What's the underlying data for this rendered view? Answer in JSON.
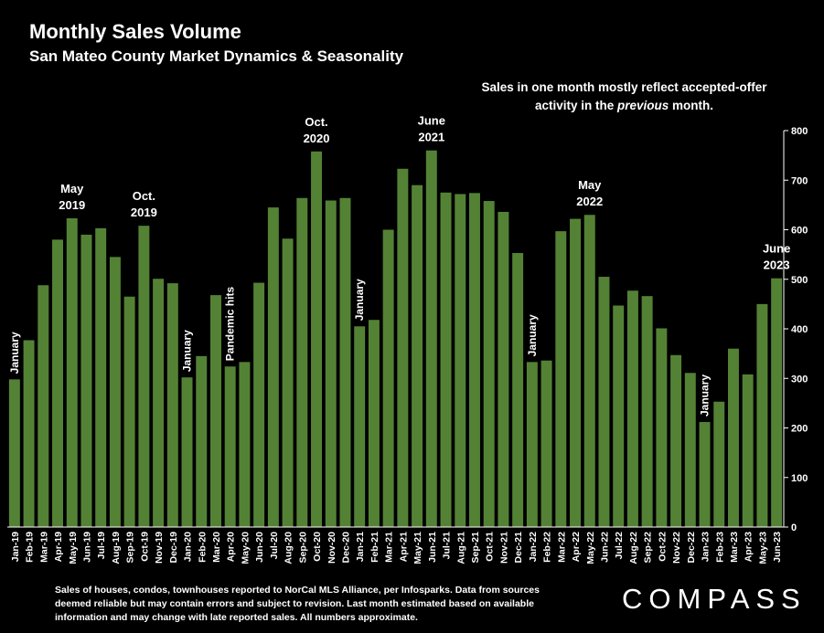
{
  "title": "Monthly Sales Volume",
  "subtitle": "San Mateo County Market Dynamics & Seasonality",
  "note_parts": [
    "Sales in one month mostly reflect accepted-offer activity in the ",
    "previous",
    " month."
  ],
  "footer": "Sales of houses, condos, townhouses reported to NorCal MLS Alliance, per Infosparks. Data from sources deemed reliable but may contain errors and subject to revision. Last month estimated based on available information and may change with late reported sales. All numbers approximate.",
  "logo": "COMPASS",
  "colors": {
    "bar": "#548235",
    "background": "#000000",
    "text": "#ffffff",
    "axis": "#ffffff"
  },
  "chart_data": {
    "type": "bar",
    "ylim": [
      0,
      800
    ],
    "yticks": [
      0,
      100,
      200,
      300,
      400,
      500,
      600,
      700,
      800
    ],
    "grid": false,
    "categories": [
      "Jan-19",
      "Feb-19",
      "Mar-19",
      "Apr-19",
      "May-19",
      "Jun-19",
      "Jul-19",
      "Aug-19",
      "Sep-19",
      "Oct-19",
      "Nov-19",
      "Dec-19",
      "Jan-20",
      "Feb-20",
      "Mar-20",
      "Apr-20",
      "May-20",
      "Jun-20",
      "Jul-20",
      "Aug-20",
      "Sep-20",
      "Oct-20",
      "Nov-20",
      "Dec-20",
      "Jan-21",
      "Feb-21",
      "Mar-21",
      "Apr-21",
      "May-21",
      "Jun-21",
      "Jul-21",
      "Aug-21",
      "Sep-21",
      "Oct-21",
      "Nov-21",
      "Dec-21",
      "Jan-22",
      "Feb-22",
      "Mar-22",
      "Apr-22",
      "May-22",
      "Jun-22",
      "Jul-22",
      "Aug-22",
      "Sep-22",
      "Oct-22",
      "Nov-22",
      "Dec-22",
      "Jan-23",
      "Feb-23",
      "Mar-23",
      "Apr-23",
      "May-23",
      "Jun-23"
    ],
    "values": [
      298,
      377,
      488,
      580,
      623,
      590,
      603,
      545,
      465,
      608,
      501,
      492,
      302,
      345,
      468,
      324,
      333,
      493,
      645,
      582,
      664,
      758,
      659,
      664,
      405,
      418,
      600,
      723,
      690,
      760,
      675,
      672,
      674,
      658,
      636,
      553,
      333,
      336,
      597,
      622,
      630,
      505,
      447,
      477,
      466,
      401,
      347,
      311,
      212,
      253,
      360,
      308,
      450,
      502
    ],
    "annotations": [
      {
        "index": 0,
        "lines": [
          "January"
        ],
        "vertical": true
      },
      {
        "index": 4,
        "lines": [
          "May",
          "2019"
        ],
        "vertical": false
      },
      {
        "index": 9,
        "lines": [
          "Oct.",
          "2019"
        ],
        "vertical": false
      },
      {
        "index": 12,
        "lines": [
          "January"
        ],
        "vertical": true
      },
      {
        "index": 15,
        "lines": [
          "Pandemic hits"
        ],
        "vertical": true
      },
      {
        "index": 21,
        "lines": [
          "Oct.",
          "2020"
        ],
        "vertical": false
      },
      {
        "index": 24,
        "lines": [
          "January"
        ],
        "vertical": true
      },
      {
        "index": 29,
        "lines": [
          "June",
          "2021"
        ],
        "vertical": false
      },
      {
        "index": 36,
        "lines": [
          "January"
        ],
        "vertical": true
      },
      {
        "index": 40,
        "lines": [
          "May",
          "2022"
        ],
        "vertical": false
      },
      {
        "index": 48,
        "lines": [
          "January"
        ],
        "vertical": true
      },
      {
        "index": 53,
        "lines": [
          "June",
          "2023"
        ],
        "vertical": false
      }
    ]
  }
}
